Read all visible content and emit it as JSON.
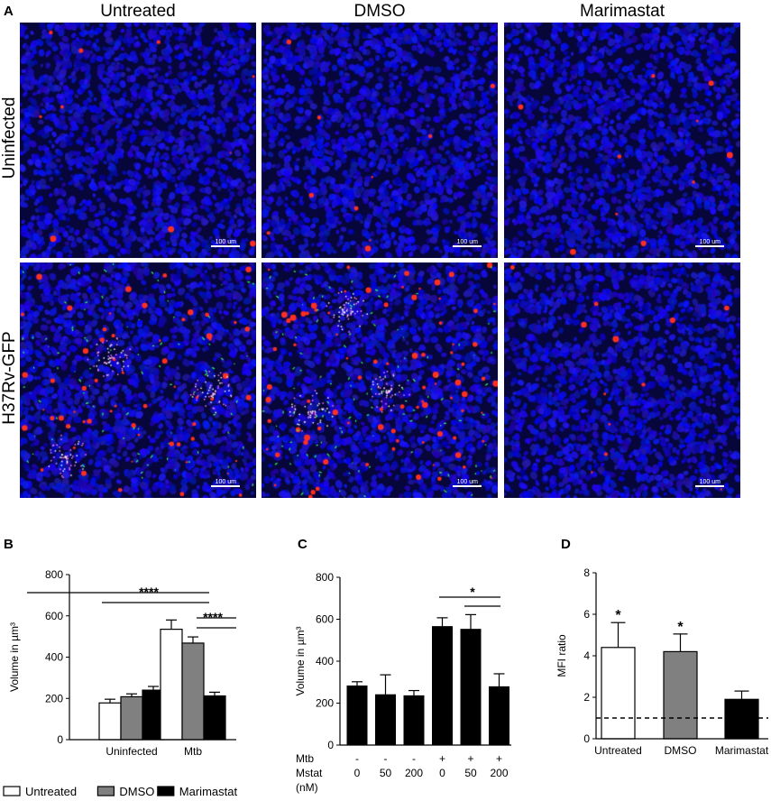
{
  "panel_letters": {
    "a": "A",
    "b": "B",
    "c": "C",
    "d": "D"
  },
  "columns": [
    "Untreated",
    "DMSO",
    "Marimastat"
  ],
  "rows": [
    "Uninfected",
    "H37Rv-GFP"
  ],
  "scale_bar": "100 um",
  "colors": {
    "nuclei": "#1a1aff",
    "background": "#06063a",
    "red": "#ff3020",
    "green": "#30ff60"
  },
  "chart_data": [
    {
      "panel": "B",
      "type": "bar",
      "ylabel": "Volume in µm³",
      "ylim": [
        0,
        800
      ],
      "yticks": [
        "0",
        "200",
        "400",
        "600",
        "800"
      ],
      "categories": [
        "Uninfected",
        "Mtb"
      ],
      "series": [
        {
          "name": "Untreated",
          "color": "#ffffff",
          "values": [
            178,
            535
          ],
          "errors": [
            18,
            45
          ]
        },
        {
          "name": "DMSO",
          "color": "#808080",
          "values": [
            208,
            468
          ],
          "errors": [
            14,
            30
          ]
        },
        {
          "name": "Marimastat",
          "color": "#000000",
          "values": [
            240,
            212
          ],
          "errors": [
            18,
            18
          ]
        }
      ],
      "significance": [
        "****",
        "****"
      ]
    },
    {
      "panel": "C",
      "type": "bar",
      "ylabel": "Volume in µm³",
      "ylim": [
        0,
        800
      ],
      "yticks": [
        "0",
        "200",
        "400",
        "600",
        "800"
      ],
      "values": [
        282,
        240,
        235,
        565,
        552,
        278
      ],
      "errors": [
        20,
        95,
        25,
        42,
        70,
        62
      ],
      "row_labels": [
        "Mtb",
        "Mstat",
        "(nM)"
      ],
      "mtb": [
        "-",
        "-",
        "-",
        "+",
        "+",
        "+"
      ],
      "mstat": [
        "0",
        "50",
        "200",
        "0",
        "50",
        "200"
      ],
      "significance": [
        "*"
      ]
    },
    {
      "panel": "D",
      "type": "bar",
      "ylabel": "MFI ratio",
      "ylim": [
        0,
        8
      ],
      "yticks": [
        "0",
        "2",
        "4",
        "6",
        "8"
      ],
      "categories": [
        "Untreated",
        "DMSO",
        "Marimastat"
      ],
      "values": [
        4.4,
        4.2,
        1.9
      ],
      "errors": [
        1.2,
        0.85,
        0.4
      ],
      "colors": [
        "#ffffff",
        "#808080",
        "#000000"
      ],
      "reference_line": 1,
      "significance": [
        "*",
        "*",
        ""
      ]
    }
  ]
}
